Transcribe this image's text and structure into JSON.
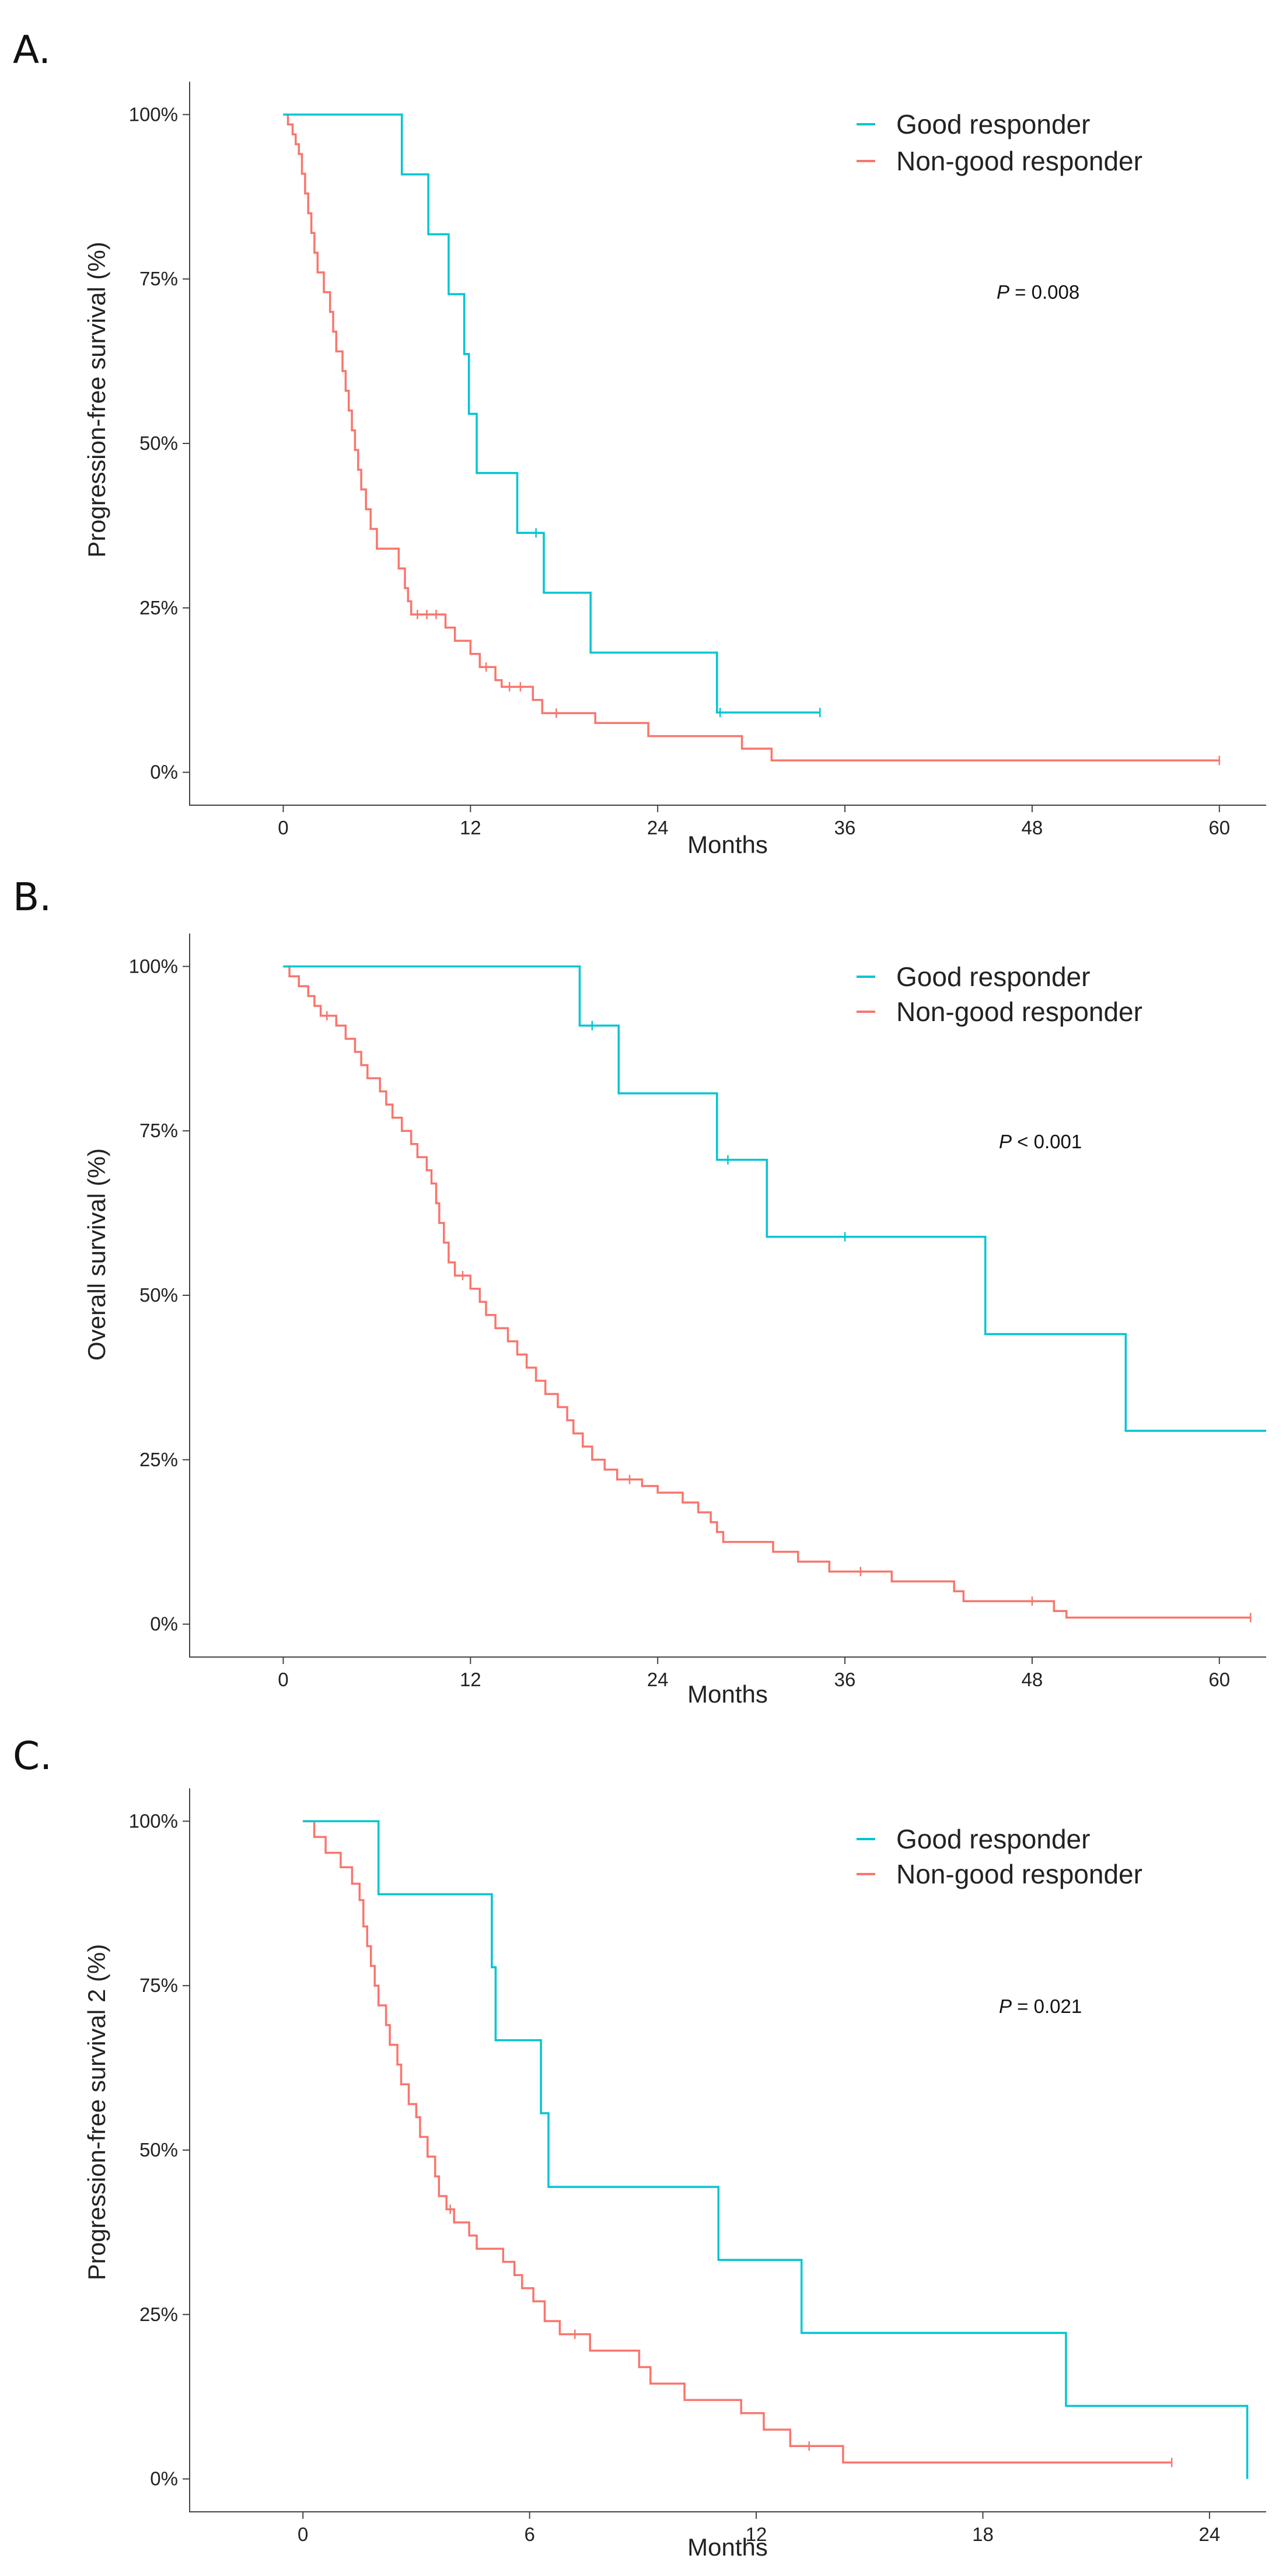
{
  "figure": {
    "colors": {
      "good": "#00c5d2",
      "non_good": "#f8766d"
    }
  },
  "chart_data": [
    {
      "type": "line",
      "subtype": "kaplan-meier",
      "panel": "A.",
      "ylabel": "Progression-free survival (%)",
      "xlabel": "Months",
      "xlim": [
        -6,
        63
      ],
      "ylim": [
        -0.05,
        1.05
      ],
      "x_ticks": [
        0,
        12,
        24,
        36,
        48,
        60
      ],
      "x_tick_labels": [
        "0",
        "12",
        "24",
        "36",
        "48",
        "60"
      ],
      "y_ticks": [
        0,
        0.25,
        0.5,
        0.75,
        1
      ],
      "y_tick_labels": [
        "0%",
        "25%",
        "50%",
        "75%",
        "100%"
      ],
      "annotation": {
        "prefix": "P",
        "text": " = 0.008"
      },
      "series": [
        {
          "name": "Good responder",
          "steps": [
            [
              0,
              1
            ],
            [
              7.6,
              0.909
            ],
            [
              9.3,
              0.818
            ],
            [
              10.6,
              0.727
            ],
            [
              11.6,
              0.636
            ],
            [
              11.9,
              0.545
            ],
            [
              12.4,
              0.455
            ],
            [
              15,
              0.364
            ],
            [
              16.7,
              0.273
            ],
            [
              19.7,
              0.182
            ],
            [
              27.8,
              0.091
            ],
            [
              34.4,
              0.091
            ]
          ],
          "censored": [
            [
              16.2,
              0.364
            ],
            [
              28,
              0.091
            ],
            [
              34.4,
              0.091
            ]
          ]
        },
        {
          "name": "Non-good responder",
          "steps": [
            [
              0,
              1
            ],
            [
              0.3,
              0.985
            ],
            [
              0.6,
              0.97
            ],
            [
              0.8,
              0.955
            ],
            [
              1,
              0.94
            ],
            [
              1.2,
              0.91
            ],
            [
              1.4,
              0.88
            ],
            [
              1.6,
              0.85
            ],
            [
              1.8,
              0.82
            ],
            [
              2,
              0.79
            ],
            [
              2.2,
              0.76
            ],
            [
              2.6,
              0.73
            ],
            [
              3,
              0.7
            ],
            [
              3.2,
              0.67
            ],
            [
              3.4,
              0.64
            ],
            [
              3.8,
              0.61
            ],
            [
              4,
              0.58
            ],
            [
              4.2,
              0.55
            ],
            [
              4.4,
              0.52
            ],
            [
              4.6,
              0.49
            ],
            [
              4.8,
              0.46
            ],
            [
              5,
              0.43
            ],
            [
              5.3,
              0.4
            ],
            [
              5.6,
              0.37
            ],
            [
              6,
              0.34
            ],
            [
              7.4,
              0.31
            ],
            [
              7.8,
              0.28
            ],
            [
              8,
              0.26
            ],
            [
              8.2,
              0.24
            ],
            [
              10.4,
              0.22
            ],
            [
              11,
              0.2
            ],
            [
              12,
              0.18
            ],
            [
              12.6,
              0.16
            ],
            [
              13.6,
              0.14
            ],
            [
              14,
              0.13
            ],
            [
              16,
              0.11
            ],
            [
              16.6,
              0.09
            ],
            [
              20,
              0.075
            ],
            [
              23.4,
              0.055
            ],
            [
              29.4,
              0.036
            ],
            [
              31.3,
              0.018
            ],
            [
              60,
              0.018
            ]
          ],
          "censored": [
            [
              8.6,
              0.24
            ],
            [
              9.2,
              0.24
            ],
            [
              9.8,
              0.24
            ],
            [
              13,
              0.16
            ],
            [
              14.5,
              0.13
            ],
            [
              15.2,
              0.13
            ],
            [
              17.5,
              0.09
            ],
            [
              60,
              0.018
            ]
          ]
        }
      ]
    },
    {
      "type": "line",
      "subtype": "kaplan-meier",
      "panel": "B.",
      "ylabel": "Overall survival (%)",
      "xlabel": "Months",
      "xlim": [
        -6,
        63
      ],
      "ylim": [
        -0.05,
        1.05
      ],
      "x_ticks": [
        0,
        12,
        24,
        36,
        48,
        60
      ],
      "x_tick_labels": [
        "0",
        "12",
        "24",
        "36",
        "48",
        "60"
      ],
      "y_ticks": [
        0,
        0.25,
        0.5,
        0.75,
        1
      ],
      "y_tick_labels": [
        "0%",
        "25%",
        "50%",
        "75%",
        "100%"
      ],
      "annotation": {
        "prefix": "P",
        "text": " < 0.001"
      },
      "series": [
        {
          "name": "Good responder",
          "steps": [
            [
              0,
              1
            ],
            [
              19,
              0.91
            ],
            [
              21.5,
              0.807
            ],
            [
              27.8,
              0.706
            ],
            [
              31,
              0.589
            ],
            [
              45,
              0.441
            ],
            [
              54,
              0.294
            ],
            [
              63,
              0.294
            ]
          ],
          "censored": [
            [
              19.8,
              0.91
            ],
            [
              28.5,
              0.706
            ],
            [
              36,
              0.589
            ]
          ]
        },
        {
          "name": "Non-good responder",
          "steps": [
            [
              0,
              1
            ],
            [
              0.4,
              0.985
            ],
            [
              1,
              0.97
            ],
            [
              1.6,
              0.955
            ],
            [
              2,
              0.94
            ],
            [
              2.4,
              0.925
            ],
            [
              3.4,
              0.91
            ],
            [
              4,
              0.89
            ],
            [
              4.6,
              0.87
            ],
            [
              5,
              0.85
            ],
            [
              5.4,
              0.83
            ],
            [
              6.2,
              0.81
            ],
            [
              6.6,
              0.79
            ],
            [
              7,
              0.77
            ],
            [
              7.6,
              0.75
            ],
            [
              8.2,
              0.73
            ],
            [
              8.6,
              0.71
            ],
            [
              9.2,
              0.69
            ],
            [
              9.5,
              0.67
            ],
            [
              9.8,
              0.64
            ],
            [
              10,
              0.61
            ],
            [
              10.3,
              0.58
            ],
            [
              10.6,
              0.55
            ],
            [
              11,
              0.53
            ],
            [
              12,
              0.51
            ],
            [
              12.6,
              0.49
            ],
            [
              13,
              0.47
            ],
            [
              13.6,
              0.45
            ],
            [
              14.4,
              0.43
            ],
            [
              15,
              0.41
            ],
            [
              15.6,
              0.39
            ],
            [
              16.2,
              0.37
            ],
            [
              16.8,
              0.35
            ],
            [
              17.6,
              0.33
            ],
            [
              18.2,
              0.31
            ],
            [
              18.6,
              0.29
            ],
            [
              19.2,
              0.27
            ],
            [
              19.8,
              0.25
            ],
            [
              20.6,
              0.235
            ],
            [
              21.4,
              0.22
            ],
            [
              23,
              0.21
            ],
            [
              24,
              0.2
            ],
            [
              25.6,
              0.185
            ],
            [
              26.6,
              0.17
            ],
            [
              27.4,
              0.155
            ],
            [
              27.8,
              0.14
            ],
            [
              28.2,
              0.125
            ],
            [
              31.4,
              0.11
            ],
            [
              33,
              0.095
            ],
            [
              35,
              0.08
            ],
            [
              39,
              0.065
            ],
            [
              43,
              0.05
            ],
            [
              43.6,
              0.035
            ],
            [
              49.4,
              0.02
            ],
            [
              50.2,
              0.01
            ],
            [
              62,
              0.01
            ]
          ],
          "censored": [
            [
              2.8,
              0.925
            ],
            [
              11.5,
              0.53
            ],
            [
              22.2,
              0.22
            ],
            [
              37,
              0.08
            ],
            [
              48,
              0.035
            ],
            [
              62,
              0.01
            ]
          ]
        }
      ]
    },
    {
      "type": "line",
      "subtype": "kaplan-meier",
      "panel": "C.",
      "ylabel": "Progression-free survival 2 (%)",
      "xlabel": "Months",
      "xlim": [
        -3,
        25.5
      ],
      "ylim": [
        -0.05,
        1.05
      ],
      "x_ticks": [
        0,
        6,
        12,
        18,
        24
      ],
      "x_tick_labels": [
        "0",
        "6",
        "12",
        "18",
        "24"
      ],
      "y_ticks": [
        0,
        0.25,
        0.5,
        0.75,
        1
      ],
      "y_tick_labels": [
        "0%",
        "25%",
        "50%",
        "75%",
        "100%"
      ],
      "annotation": {
        "prefix": "P",
        "text": " = 0.021"
      },
      "series": [
        {
          "name": "Good responder",
          "steps": [
            [
              0,
              1
            ],
            [
              2,
              0.889
            ],
            [
              5,
              0.778
            ],
            [
              5.1,
              0.667
            ],
            [
              6.3,
              0.556
            ],
            [
              6.5,
              0.444
            ],
            [
              11,
              0.333
            ],
            [
              13.2,
              0.222
            ],
            [
              20.2,
              0.111
            ],
            [
              25,
              0.111
            ],
            [
              25,
              0
            ]
          ],
          "censored": []
        },
        {
          "name": "Non-good responder",
          "steps": [
            [
              0,
              1
            ],
            [
              0.3,
              0.976
            ],
            [
              0.6,
              0.952
            ],
            [
              1,
              0.93
            ],
            [
              1.3,
              0.905
            ],
            [
              1.5,
              0.88
            ],
            [
              1.6,
              0.84
            ],
            [
              1.7,
              0.81
            ],
            [
              1.8,
              0.78
            ],
            [
              1.9,
              0.75
            ],
            [
              2,
              0.72
            ],
            [
              2.2,
              0.69
            ],
            [
              2.3,
              0.66
            ],
            [
              2.5,
              0.63
            ],
            [
              2.6,
              0.6
            ],
            [
              2.8,
              0.57
            ],
            [
              3,
              0.55
            ],
            [
              3.1,
              0.52
            ],
            [
              3.3,
              0.49
            ],
            [
              3.5,
              0.46
            ],
            [
              3.6,
              0.43
            ],
            [
              3.8,
              0.41
            ],
            [
              4,
              0.39
            ],
            [
              4.4,
              0.37
            ],
            [
              4.6,
              0.35
            ],
            [
              5.3,
              0.33
            ],
            [
              5.6,
              0.31
            ],
            [
              5.8,
              0.29
            ],
            [
              6.1,
              0.27
            ],
            [
              6.4,
              0.24
            ],
            [
              6.8,
              0.22
            ],
            [
              7.6,
              0.195
            ],
            [
              8.9,
              0.17
            ],
            [
              9.2,
              0.145
            ],
            [
              10.1,
              0.12
            ],
            [
              11.6,
              0.1
            ],
            [
              12.2,
              0.075
            ],
            [
              12.9,
              0.05
            ],
            [
              14.3,
              0.025
            ],
            [
              23,
              0.025
            ]
          ],
          "censored": [
            [
              3.9,
              0.41
            ],
            [
              7.2,
              0.22
            ],
            [
              13.4,
              0.05
            ],
            [
              23,
              0.025
            ]
          ]
        }
      ]
    }
  ]
}
